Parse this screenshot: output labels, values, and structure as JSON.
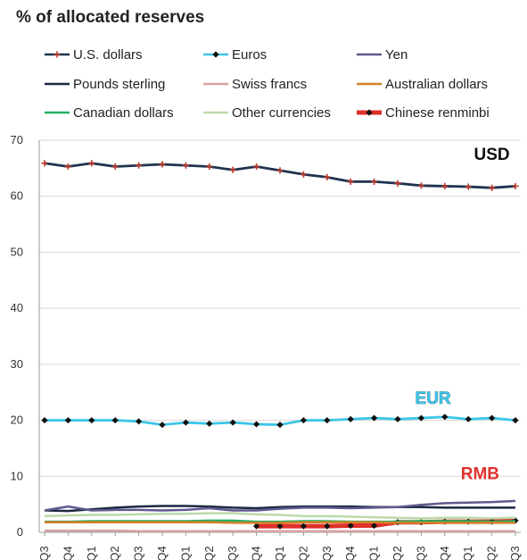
{
  "chart_data": {
    "type": "line",
    "title": "% of allocated reserves",
    "xlabel": "",
    "ylabel": "",
    "ylim": [
      0,
      70
    ],
    "yticks": [
      0,
      10,
      20,
      30,
      40,
      50,
      60,
      70
    ],
    "categories": [
      "Q3",
      "Q4",
      "Q1",
      "Q2",
      "Q3",
      "Q4",
      "Q1",
      "Q2",
      "Q3",
      "Q4",
      "Q1",
      "Q2",
      "Q3",
      "Q4",
      "Q1",
      "Q2",
      "Q3",
      "Q4",
      "Q1",
      "Q2",
      "Q3"
    ],
    "legend_position": "top",
    "grid": "horizontal",
    "series": [
      {
        "name": "U.S. dollars",
        "color": "#1f3350",
        "marker": "plus",
        "marker_color": "#c0392b",
        "values": [
          65.9,
          65.3,
          65.9,
          65.3,
          65.5,
          65.7,
          65.5,
          65.3,
          64.7,
          65.3,
          64.6,
          63.9,
          63.4,
          62.6,
          62.6,
          62.3,
          61.9,
          61.8,
          61.7,
          61.5,
          61.8
        ]
      },
      {
        "name": "Euros",
        "color": "#3ec6e8",
        "marker": "diamond",
        "marker_color": "#111111",
        "values": [
          20.0,
          20.0,
          20.0,
          20.0,
          19.8,
          19.2,
          19.6,
          19.4,
          19.6,
          19.3,
          19.2,
          20.0,
          20.0,
          20.2,
          20.4,
          20.2,
          20.4,
          20.6,
          20.2,
          20.4,
          20.0
        ]
      },
      {
        "name": "Yen",
        "color": "#5e5a8e",
        "values": [
          3.9,
          4.6,
          3.9,
          4.0,
          4.0,
          3.9,
          4.0,
          4.3,
          3.9,
          3.9,
          4.2,
          4.4,
          4.4,
          4.3,
          4.4,
          4.5,
          4.9,
          5.2,
          5.3,
          5.4,
          5.6
        ]
      },
      {
        "name": "Pounds sterling",
        "color": "#1a2940",
        "values": [
          3.9,
          3.8,
          4.1,
          4.4,
          4.6,
          4.7,
          4.7,
          4.6,
          4.4,
          4.3,
          4.5,
          4.6,
          4.6,
          4.6,
          4.5,
          4.5,
          4.5,
          4.4,
          4.4,
          4.4,
          4.4
        ]
      },
      {
        "name": "Swiss francs",
        "color": "#d9a0a0",
        "values": [
          0.3,
          0.3,
          0.3,
          0.3,
          0.2,
          0.2,
          0.2,
          0.2,
          0.2,
          0.2,
          0.2,
          0.2,
          0.2,
          0.2,
          0.2,
          0.2,
          0.2,
          0.2,
          0.2,
          0.2,
          0.2
        ]
      },
      {
        "name": "Australian dollars",
        "color": "#d4802b",
        "values": [
          1.8,
          1.8,
          1.8,
          1.8,
          1.8,
          1.8,
          1.8,
          1.8,
          1.7,
          1.7,
          1.7,
          1.8,
          1.8,
          1.8,
          1.8,
          1.7,
          1.7,
          1.7,
          1.7,
          1.7,
          1.7
        ]
      },
      {
        "name": "Canadian dollars",
        "color": "#27ae60",
        "values": [
          1.9,
          1.9,
          2.0,
          2.0,
          2.0,
          2.0,
          2.0,
          2.1,
          2.1,
          1.9,
          1.9,
          2.0,
          2.0,
          1.9,
          1.9,
          1.9,
          2.0,
          2.0,
          2.0,
          1.9,
          2.0
        ]
      },
      {
        "name": "Other currencies",
        "color": "#bcd9a8",
        "values": [
          2.9,
          3.0,
          3.1,
          3.1,
          3.2,
          3.3,
          3.3,
          3.4,
          3.4,
          3.2,
          3.1,
          2.9,
          2.9,
          2.8,
          2.7,
          2.6,
          2.5,
          2.6,
          2.6,
          2.5,
          2.6
        ]
      },
      {
        "name": "Chinese renminbi",
        "color": "#e0302a",
        "marker": "diamond",
        "marker_color": "#111111",
        "values": [
          null,
          null,
          null,
          null,
          null,
          null,
          null,
          null,
          null,
          1.1,
          1.1,
          1.1,
          1.1,
          1.2,
          1.2,
          1.8,
          1.8,
          1.9,
          1.9,
          1.9,
          2.1
        ]
      }
    ],
    "annotations": [
      {
        "text": "USD",
        "x": 19,
        "y": 66.5,
        "color": "#111111",
        "outline": "#ffffff"
      },
      {
        "text": "EUR",
        "x": 16.5,
        "y": 23,
        "color": "#3ec6e8",
        "outline": "#1a4a6a"
      },
      {
        "text": "RMB",
        "x": 18.5,
        "y": 9.5,
        "color": "#e0302a",
        "outline": "#ffffff"
      }
    ]
  }
}
